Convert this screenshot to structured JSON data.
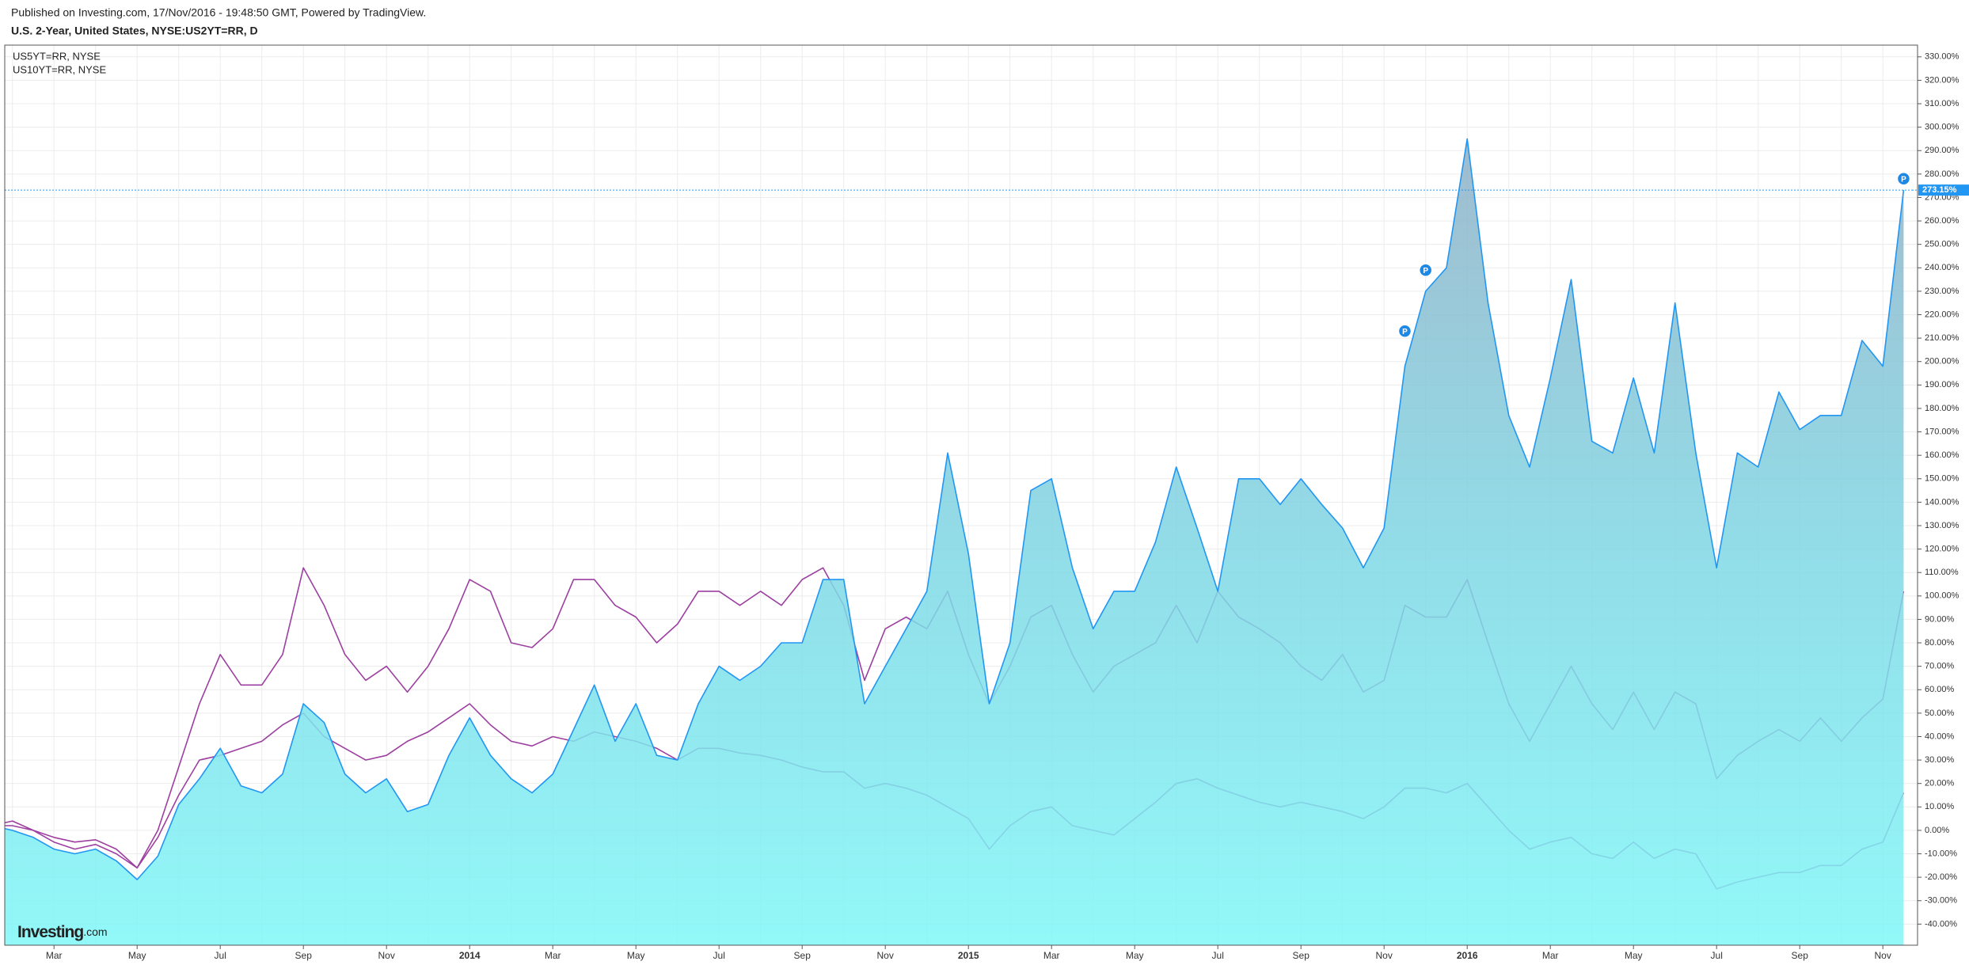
{
  "header": {
    "published": "Published on Investing.com, 17/Nov/2016 - 19:48:50 GMT, Powered by TradingView."
  },
  "chart_data": {
    "type": "line",
    "title": "U.S. 2-Year, United States, NYSE:US2YT=RR, D",
    "logo": [
      "Investing",
      ".com"
    ],
    "categories": [
      null,
      null,
      null,
      "Mar",
      null,
      null,
      null,
      "May",
      null,
      null,
      null,
      "Jul",
      null,
      null,
      null,
      "Sep",
      null,
      null,
      null,
      "Nov",
      null,
      null,
      null,
      "2014",
      null,
      null,
      null,
      "Mar",
      null,
      null,
      null,
      "May",
      null,
      null,
      null,
      "Jul",
      null,
      null,
      null,
      "Sep",
      null,
      null,
      null,
      "Nov",
      null,
      null,
      null,
      "2015",
      null,
      null,
      null,
      "Mar",
      null,
      null,
      null,
      "May",
      null,
      null,
      null,
      "Jul",
      null,
      null,
      null,
      "Sep",
      null,
      null,
      null,
      "Nov",
      null,
      null,
      null,
      "2016",
      null,
      null,
      null,
      "Mar",
      null,
      null,
      null,
      "May",
      null,
      null,
      null,
      "Jul",
      null,
      null,
      null,
      "Sep",
      null,
      null,
      null,
      "Nov",
      null
    ],
    "series": [
      {
        "color": "#2196f3",
        "area": true,
        "values": [
          2,
          0,
          -3,
          -8,
          -10,
          -8,
          -13,
          -21,
          -11,
          11,
          22,
          35,
          19,
          16,
          24,
          54,
          46,
          24,
          16,
          22,
          8,
          11,
          32,
          48,
          32,
          22,
          16,
          24,
          43,
          62,
          38,
          54,
          32,
          30,
          54,
          70,
          64,
          70,
          80,
          80,
          107,
          107,
          54,
          70,
          86,
          102,
          161,
          118,
          54,
          80,
          145,
          150,
          112,
          86,
          102,
          102,
          123,
          155,
          129,
          102,
          150,
          150,
          139,
          150,
          139,
          129,
          112,
          129,
          198,
          230,
          240,
          295,
          225,
          177,
          155,
          193,
          235,
          166,
          161,
          193,
          161,
          225,
          161,
          112,
          161,
          155,
          187,
          171,
          177,
          177,
          209,
          198,
          273.15
        ]
      },
      {
        "name": "US5YT=RR, NYSE",
        "color": "#9c3fa0",
        "values": [
          2,
          2,
          0,
          -3,
          -5,
          -4,
          -8,
          -16,
          0,
          27,
          54,
          75,
          62,
          62,
          75,
          112,
          96,
          75,
          64,
          70,
          59,
          70,
          86,
          107,
          102,
          80,
          78,
          86,
          107,
          107,
          96,
          91,
          80,
          88,
          102,
          102,
          96,
          102,
          96,
          107,
          112,
          96,
          64,
          86,
          91,
          86,
          102,
          75,
          54,
          70,
          91,
          96,
          75,
          59,
          70,
          75,
          80,
          96,
          80,
          102,
          91,
          86,
          80,
          70,
          64,
          75,
          59,
          64,
          96,
          91,
          91,
          107,
          80,
          54,
          38,
          54,
          70,
          54,
          43,
          59,
          43,
          59,
          54,
          22,
          32,
          38,
          43,
          38,
          48,
          38,
          48,
          56,
          102
        ]
      },
      {
        "name": "US10YT=RR, NYSE",
        "color": "#9c3fa0",
        "values": [
          2,
          4,
          0,
          -5,
          -8,
          -6,
          -10,
          -16,
          -3,
          15,
          30,
          32,
          35,
          38,
          45,
          50,
          40,
          35,
          30,
          32,
          38,
          42,
          48,
          54,
          45,
          38,
          36,
          40,
          38,
          42,
          40,
          38,
          35,
          30,
          35,
          35,
          33,
          32,
          30,
          27,
          25,
          25,
          18,
          20,
          18,
          15,
          10,
          5,
          -8,
          2,
          8,
          10,
          2,
          0,
          -2,
          5,
          12,
          20,
          22,
          18,
          15,
          12,
          10,
          12,
          10,
          8,
          5,
          10,
          18,
          18,
          16,
          20,
          10,
          0,
          -8,
          -5,
          -3,
          -10,
          -12,
          -5,
          -12,
          -8,
          -10,
          -25,
          -22,
          -20,
          -18,
          -18,
          -15,
          -15,
          -8,
          -5,
          16
        ]
      }
    ],
    "ylim": [
      -49,
      335
    ],
    "yticks": [
      {
        "value": -40,
        "label": "-40.00%"
      },
      {
        "value": -30,
        "label": "-30.00%"
      },
      {
        "value": -20,
        "label": "-20.00%"
      },
      {
        "value": -10,
        "label": "-10.00%"
      },
      {
        "value": 0,
        "label": "0.00%"
      },
      {
        "value": 10,
        "label": "10.00%"
      },
      {
        "value": 20,
        "label": "20.00%"
      },
      {
        "value": 30,
        "label": "30.00%"
      },
      {
        "value": 40,
        "label": "40.00%"
      },
      {
        "value": 50,
        "label": "50.00%"
      },
      {
        "value": 60,
        "label": "60.00%"
      },
      {
        "value": 70,
        "label": "70.00%"
      },
      {
        "value": 80,
        "label": "80.00%"
      },
      {
        "value": 90,
        "label": "90.00%"
      },
      {
        "value": 100,
        "label": "100.00%"
      },
      {
        "value": 110,
        "label": "110.00%"
      },
      {
        "value": 120,
        "label": "120.00%"
      },
      {
        "value": 130,
        "label": "130.00%"
      },
      {
        "value": 140,
        "label": "140.00%"
      },
      {
        "value": 150,
        "label": "150.00%"
      },
      {
        "value": 160,
        "label": "160.00%"
      },
      {
        "value": 170,
        "label": "170.00%"
      },
      {
        "value": 180,
        "label": "180.00%"
      },
      {
        "value": 190,
        "label": "190.00%"
      },
      {
        "value": 200,
        "label": "200.00%"
      },
      {
        "value": 210,
        "label": "210.00%"
      },
      {
        "value": 220,
        "label": "220.00%"
      },
      {
        "value": 230,
        "label": "230.00%"
      },
      {
        "value": 240,
        "label": "240.00%"
      },
      {
        "value": 250,
        "label": "250.00%"
      },
      {
        "value": 260,
        "label": "260.00%"
      },
      {
        "value": 270,
        "label": "270.00%"
      },
      {
        "value": 280,
        "label": "280.00%"
      },
      {
        "value": 290,
        "label": "290.00%"
      },
      {
        "value": 300,
        "label": "300.00%"
      },
      {
        "value": 310,
        "label": "310.00%"
      },
      {
        "value": 320,
        "label": "320.00%"
      },
      {
        "value": 330,
        "label": "330.00%"
      }
    ],
    "grid": true,
    "price_line": {
      "value": 273.15,
      "label": "273.15%",
      "color": "#2196f3"
    },
    "markers": [
      {
        "label": "P",
        "category_index": 69,
        "value": 239
      },
      {
        "label": "P",
        "category_index": 68,
        "value": 213
      },
      {
        "label": "P",
        "category_index": 92,
        "value": 278
      }
    ]
  }
}
